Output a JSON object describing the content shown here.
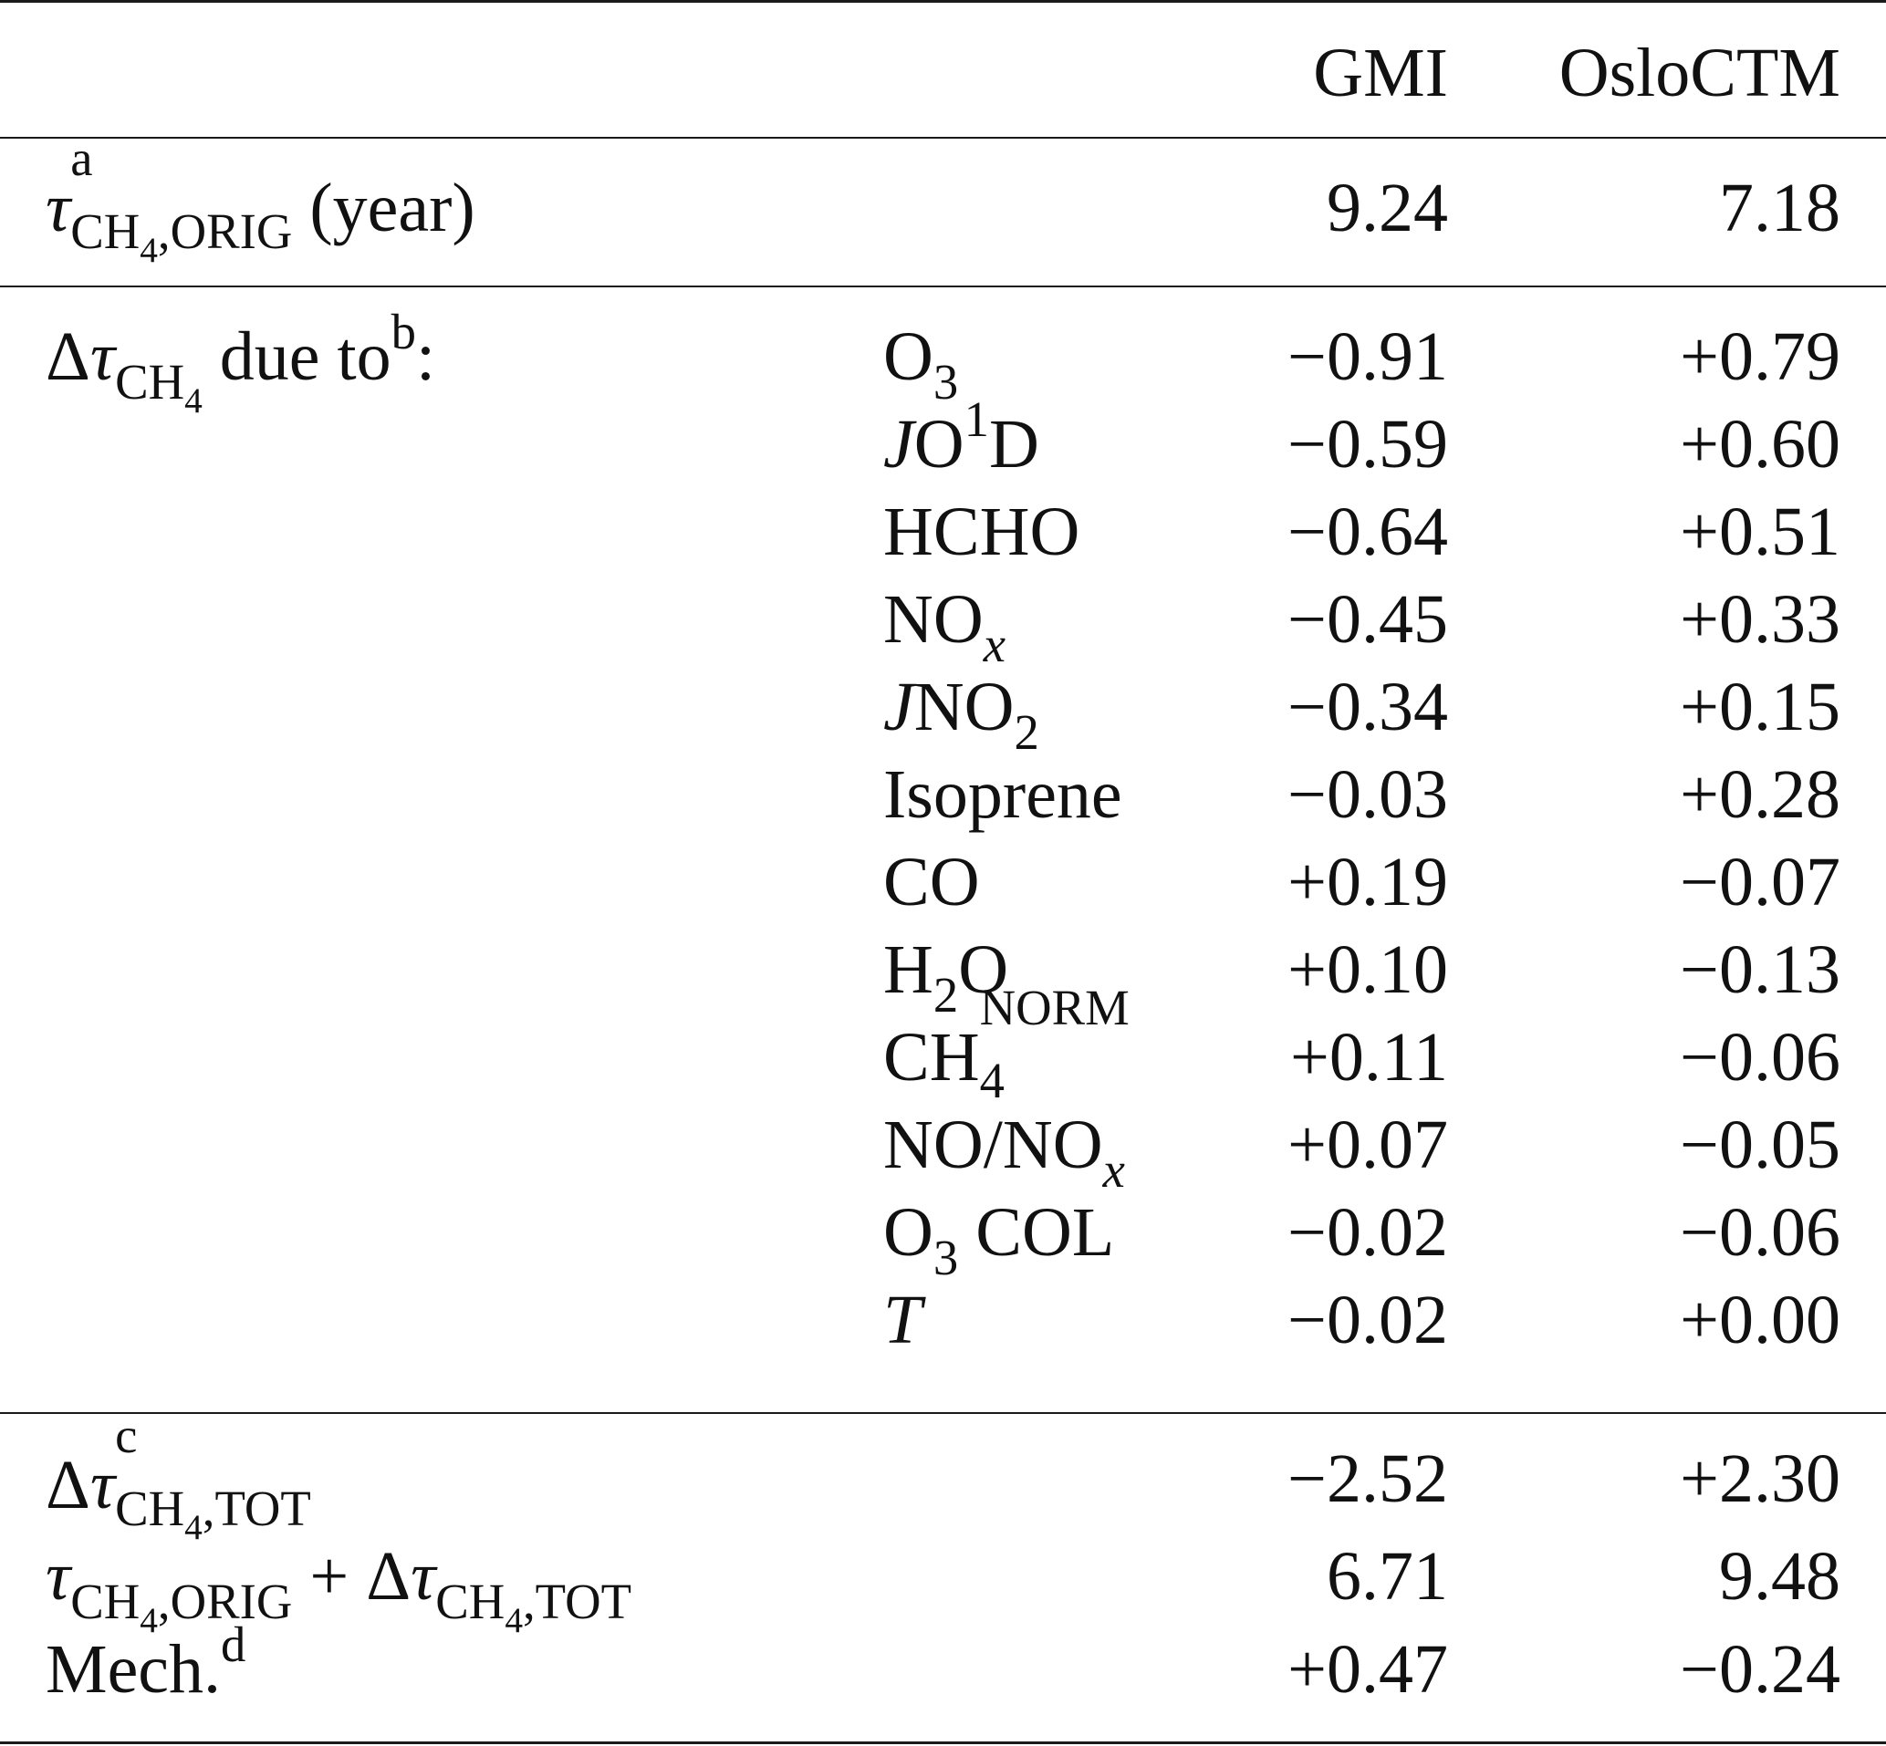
{
  "header": {
    "col_gmi": "GMI",
    "col_oslo": "OsloCTM"
  },
  "orig": {
    "tau": "τ",
    "sup": "a",
    "sub_a": "CH",
    "sub_4": "4",
    "sub_b": ",ORIG",
    "unit": "(year)",
    "gmi": "9.24",
    "oslo": "7.18"
  },
  "due": {
    "delta": "Δ",
    "tau": "τ",
    "sub_a": "CH",
    "sub_4": "4",
    "text": "due to",
    "sup": "b",
    "colon": ":"
  },
  "factors": [
    {
      "gmi": "−0.91",
      "oslo": "+0.79"
    },
    {
      "gmi": "−0.59",
      "oslo": "+0.60"
    },
    {
      "gmi": "−0.64",
      "oslo": "+0.51"
    },
    {
      "gmi": "−0.45",
      "oslo": "+0.33"
    },
    {
      "gmi": "−0.34",
      "oslo": "+0.15"
    },
    {
      "gmi": "−0.03",
      "oslo": "+0.28"
    },
    {
      "gmi": "+0.19",
      "oslo": "−0.07"
    },
    {
      "gmi": "+0.10",
      "oslo": "−0.13"
    },
    {
      "gmi": "+0.11",
      "oslo": "−0.06"
    },
    {
      "gmi": "+0.07",
      "oslo": "−0.05"
    },
    {
      "gmi": "−0.02",
      "oslo": "−0.06"
    },
    {
      "gmi": "−0.02",
      "oslo": "+0.00"
    }
  ],
  "factor_labels": {
    "o3": {
      "a": "O",
      "sub": "3"
    },
    "jo1d": {
      "j": "J",
      "a": "O",
      "sup": "1",
      "b": "D"
    },
    "hcho": "HCHO",
    "nox": {
      "a": "NO",
      "sub": "x"
    },
    "jno2": {
      "j": "J",
      "a": "NO",
      "sub": "2"
    },
    "isoprene": "Isoprene",
    "co": "CO",
    "h2o": {
      "a": "H",
      "sub": "2",
      "b": "O"
    },
    "ch4norm": {
      "a": "CH",
      "sup": "NORM",
      "sub": "4"
    },
    "no_nox": {
      "a": "NO/NO",
      "sub": "x"
    },
    "o3col": {
      "a": "O",
      "sub": "3",
      "b": " COL"
    },
    "t": "T"
  },
  "tot": {
    "delta": "Δ",
    "tau": "τ",
    "sup": "c",
    "sub_a": "CH",
    "sub_4": "4",
    "sub_b": ",TOT",
    "gmi": "−2.52",
    "oslo": "+2.30"
  },
  "sum": {
    "tau": "τ",
    "sub_a": "CH",
    "sub_4": "4",
    "sub_b": ",ORIG",
    "plus": " + ",
    "delta": "Δ",
    "tau2": "τ",
    "sub2_a": "CH",
    "sub2_4": "4",
    "sub2_b": ",TOT",
    "gmi": "6.71",
    "oslo": "9.48"
  },
  "mech": {
    "text": "Mech.",
    "sup": "d",
    "gmi": "+0.47",
    "oslo": "−0.24"
  }
}
